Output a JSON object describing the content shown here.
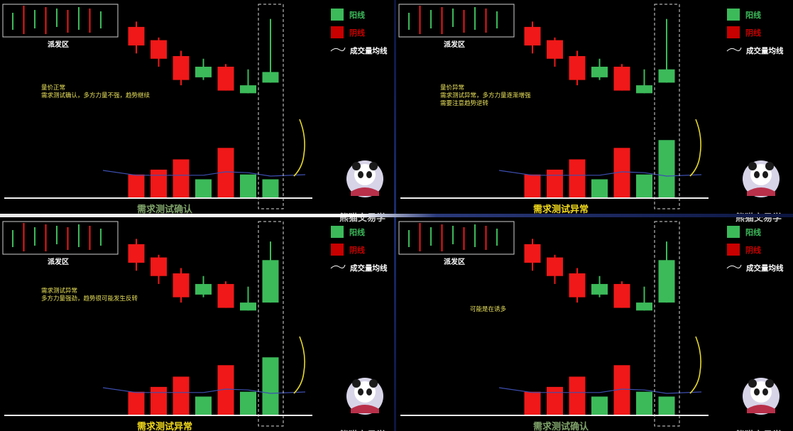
{
  "colors": {
    "bull": "#3cba5a",
    "bear": "#f01818",
    "bear_dark": "#c80000",
    "ma_line": "#3d4fb0",
    "note_text": "#e8e05a",
    "caption_green": "#7fa36a",
    "caption_yellow": "#f0d81c",
    "annotation": "#e6d82a"
  },
  "icons": {
    "mascot": "panda-icon",
    "legend_line": "ma-line-icon"
  },
  "legend": {
    "bull": "阳线",
    "bear": "阴线",
    "ma": "成交量均线"
  },
  "dist_label": "派发区",
  "watermark": "熊猫交易学",
  "panels": [
    {
      "id": "p1",
      "notes": [
        "量价正常",
        "需求测试确认，多方力量不强，趋势继续"
      ],
      "caption": "需求测试确认",
      "caption_color": "caption_green",
      "chart_data": {
        "type": "candlestick+volume",
        "candles": [
          {
            "dir": "bear",
            "o": 92,
            "c": 85,
            "h": 94,
            "l": 82
          },
          {
            "dir": "bear",
            "o": 87,
            "c": 80,
            "h": 88,
            "l": 77
          },
          {
            "dir": "bear",
            "o": 81,
            "c": 72,
            "h": 83,
            "l": 70
          },
          {
            "dir": "bull",
            "o": 73,
            "c": 77,
            "h": 80,
            "l": 72
          },
          {
            "dir": "bear",
            "o": 77,
            "c": 68,
            "h": 78,
            "l": 68
          },
          {
            "dir": "bull",
            "o": 67,
            "c": 70,
            "h": 76,
            "l": 67
          },
          {
            "dir": "bull",
            "o": 71,
            "c": 75,
            "h": 95,
            "l": 71
          }
        ],
        "volume": [
          38,
          46,
          63,
          30,
          82,
          38,
          30
        ],
        "volume_ma": [
          22,
          22,
          22,
          22,
          30,
          28,
          20
        ]
      }
    },
    {
      "id": "p2",
      "notes": [
        "量价异常",
        "需求测试异常，多方力量逐渐增强",
        "需要注意趋势逆转"
      ],
      "caption": "需求测试异常",
      "caption_color": "caption_yellow",
      "chart_data": {
        "type": "candlestick+volume",
        "candles": [
          {
            "dir": "bear",
            "o": 92,
            "c": 85,
            "h": 94,
            "l": 82
          },
          {
            "dir": "bear",
            "o": 87,
            "c": 80,
            "h": 88,
            "l": 77
          },
          {
            "dir": "bear",
            "o": 81,
            "c": 72,
            "h": 83,
            "l": 70
          },
          {
            "dir": "bull",
            "o": 73,
            "c": 77,
            "h": 80,
            "l": 72
          },
          {
            "dir": "bear",
            "o": 77,
            "c": 68,
            "h": 78,
            "l": 68
          },
          {
            "dir": "bull",
            "o": 67,
            "c": 70,
            "h": 76,
            "l": 67
          },
          {
            "dir": "bull",
            "o": 71,
            "c": 76,
            "h": 95,
            "l": 71
          }
        ],
        "volume": [
          38,
          46,
          63,
          30,
          82,
          38,
          95
        ],
        "volume_ma": [
          22,
          22,
          22,
          22,
          30,
          28,
          20
        ]
      }
    },
    {
      "id": "p3",
      "notes": [
        "需求测试异常",
        "多方力量强劲，趋势很可能发生反转"
      ],
      "caption": "需求测试异常",
      "caption_color": "caption_yellow",
      "chart_data": {
        "type": "candlestick+volume",
        "candles": [
          {
            "dir": "bear",
            "o": 92,
            "c": 85,
            "h": 94,
            "l": 82
          },
          {
            "dir": "bear",
            "o": 87,
            "c": 80,
            "h": 88,
            "l": 77
          },
          {
            "dir": "bear",
            "o": 81,
            "c": 72,
            "h": 83,
            "l": 70
          },
          {
            "dir": "bull",
            "o": 73,
            "c": 77,
            "h": 80,
            "l": 72
          },
          {
            "dir": "bear",
            "o": 77,
            "c": 68,
            "h": 78,
            "l": 68
          },
          {
            "dir": "bull",
            "o": 67,
            "c": 70,
            "h": 76,
            "l": 67
          },
          {
            "dir": "bull",
            "o": 70,
            "c": 86,
            "h": 93,
            "l": 70
          }
        ],
        "volume": [
          38,
          46,
          63,
          30,
          82,
          38,
          95
        ],
        "volume_ma": [
          22,
          22,
          22,
          22,
          30,
          28,
          20
        ]
      }
    },
    {
      "id": "p4",
      "notes": [
        "可能是在诱多"
      ],
      "caption": "需求测试确认",
      "caption_color": "caption_green",
      "chart_data": {
        "type": "candlestick+volume",
        "candles": [
          {
            "dir": "bear",
            "o": 92,
            "c": 85,
            "h": 94,
            "l": 82
          },
          {
            "dir": "bear",
            "o": 87,
            "c": 80,
            "h": 88,
            "l": 77
          },
          {
            "dir": "bear",
            "o": 81,
            "c": 72,
            "h": 83,
            "l": 70
          },
          {
            "dir": "bull",
            "o": 73,
            "c": 77,
            "h": 80,
            "l": 72
          },
          {
            "dir": "bear",
            "o": 77,
            "c": 68,
            "h": 78,
            "l": 68
          },
          {
            "dir": "bull",
            "o": 67,
            "c": 70,
            "h": 76,
            "l": 67
          },
          {
            "dir": "bull",
            "o": 70,
            "c": 86,
            "h": 93,
            "l": 70
          }
        ],
        "volume": [
          38,
          46,
          63,
          30,
          82,
          38,
          30
        ],
        "volume_ma": [
          22,
          22,
          22,
          22,
          30,
          28,
          20
        ]
      }
    }
  ]
}
